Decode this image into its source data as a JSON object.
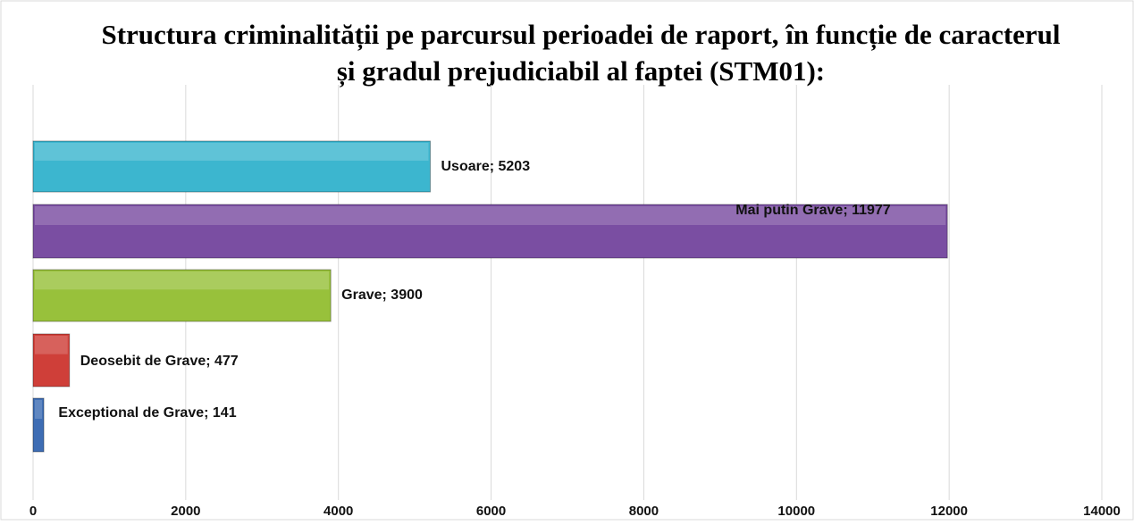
{
  "chart_data": {
    "type": "bar",
    "orientation": "horizontal",
    "title": "Structura criminalității pe parcursul perioadei de raport, în funcție de caracterul și gradul prejudiciabil al faptei (STM01):",
    "categories": [
      "Usoare",
      "Mai putin Grave",
      "Grave",
      "Deosebit de Grave",
      "Exceptional de Grave"
    ],
    "values": [
      5203,
      11977,
      3900,
      477,
      141
    ],
    "value_labels": [
      "Usoare; 5203",
      "Mai putin Grave; 11977",
      "Grave; 3900",
      "Deosebit de Grave; 477",
      "Exceptional de Grave; 141"
    ],
    "colors": [
      "#3cb6cf",
      "#7a4ea2",
      "#98c13b",
      "#cf3f39",
      "#3e6db4"
    ],
    "xlim": [
      0,
      14000
    ],
    "xticks": [
      0,
      2000,
      4000,
      6000,
      8000,
      10000,
      12000,
      14000
    ],
    "grid": true
  }
}
